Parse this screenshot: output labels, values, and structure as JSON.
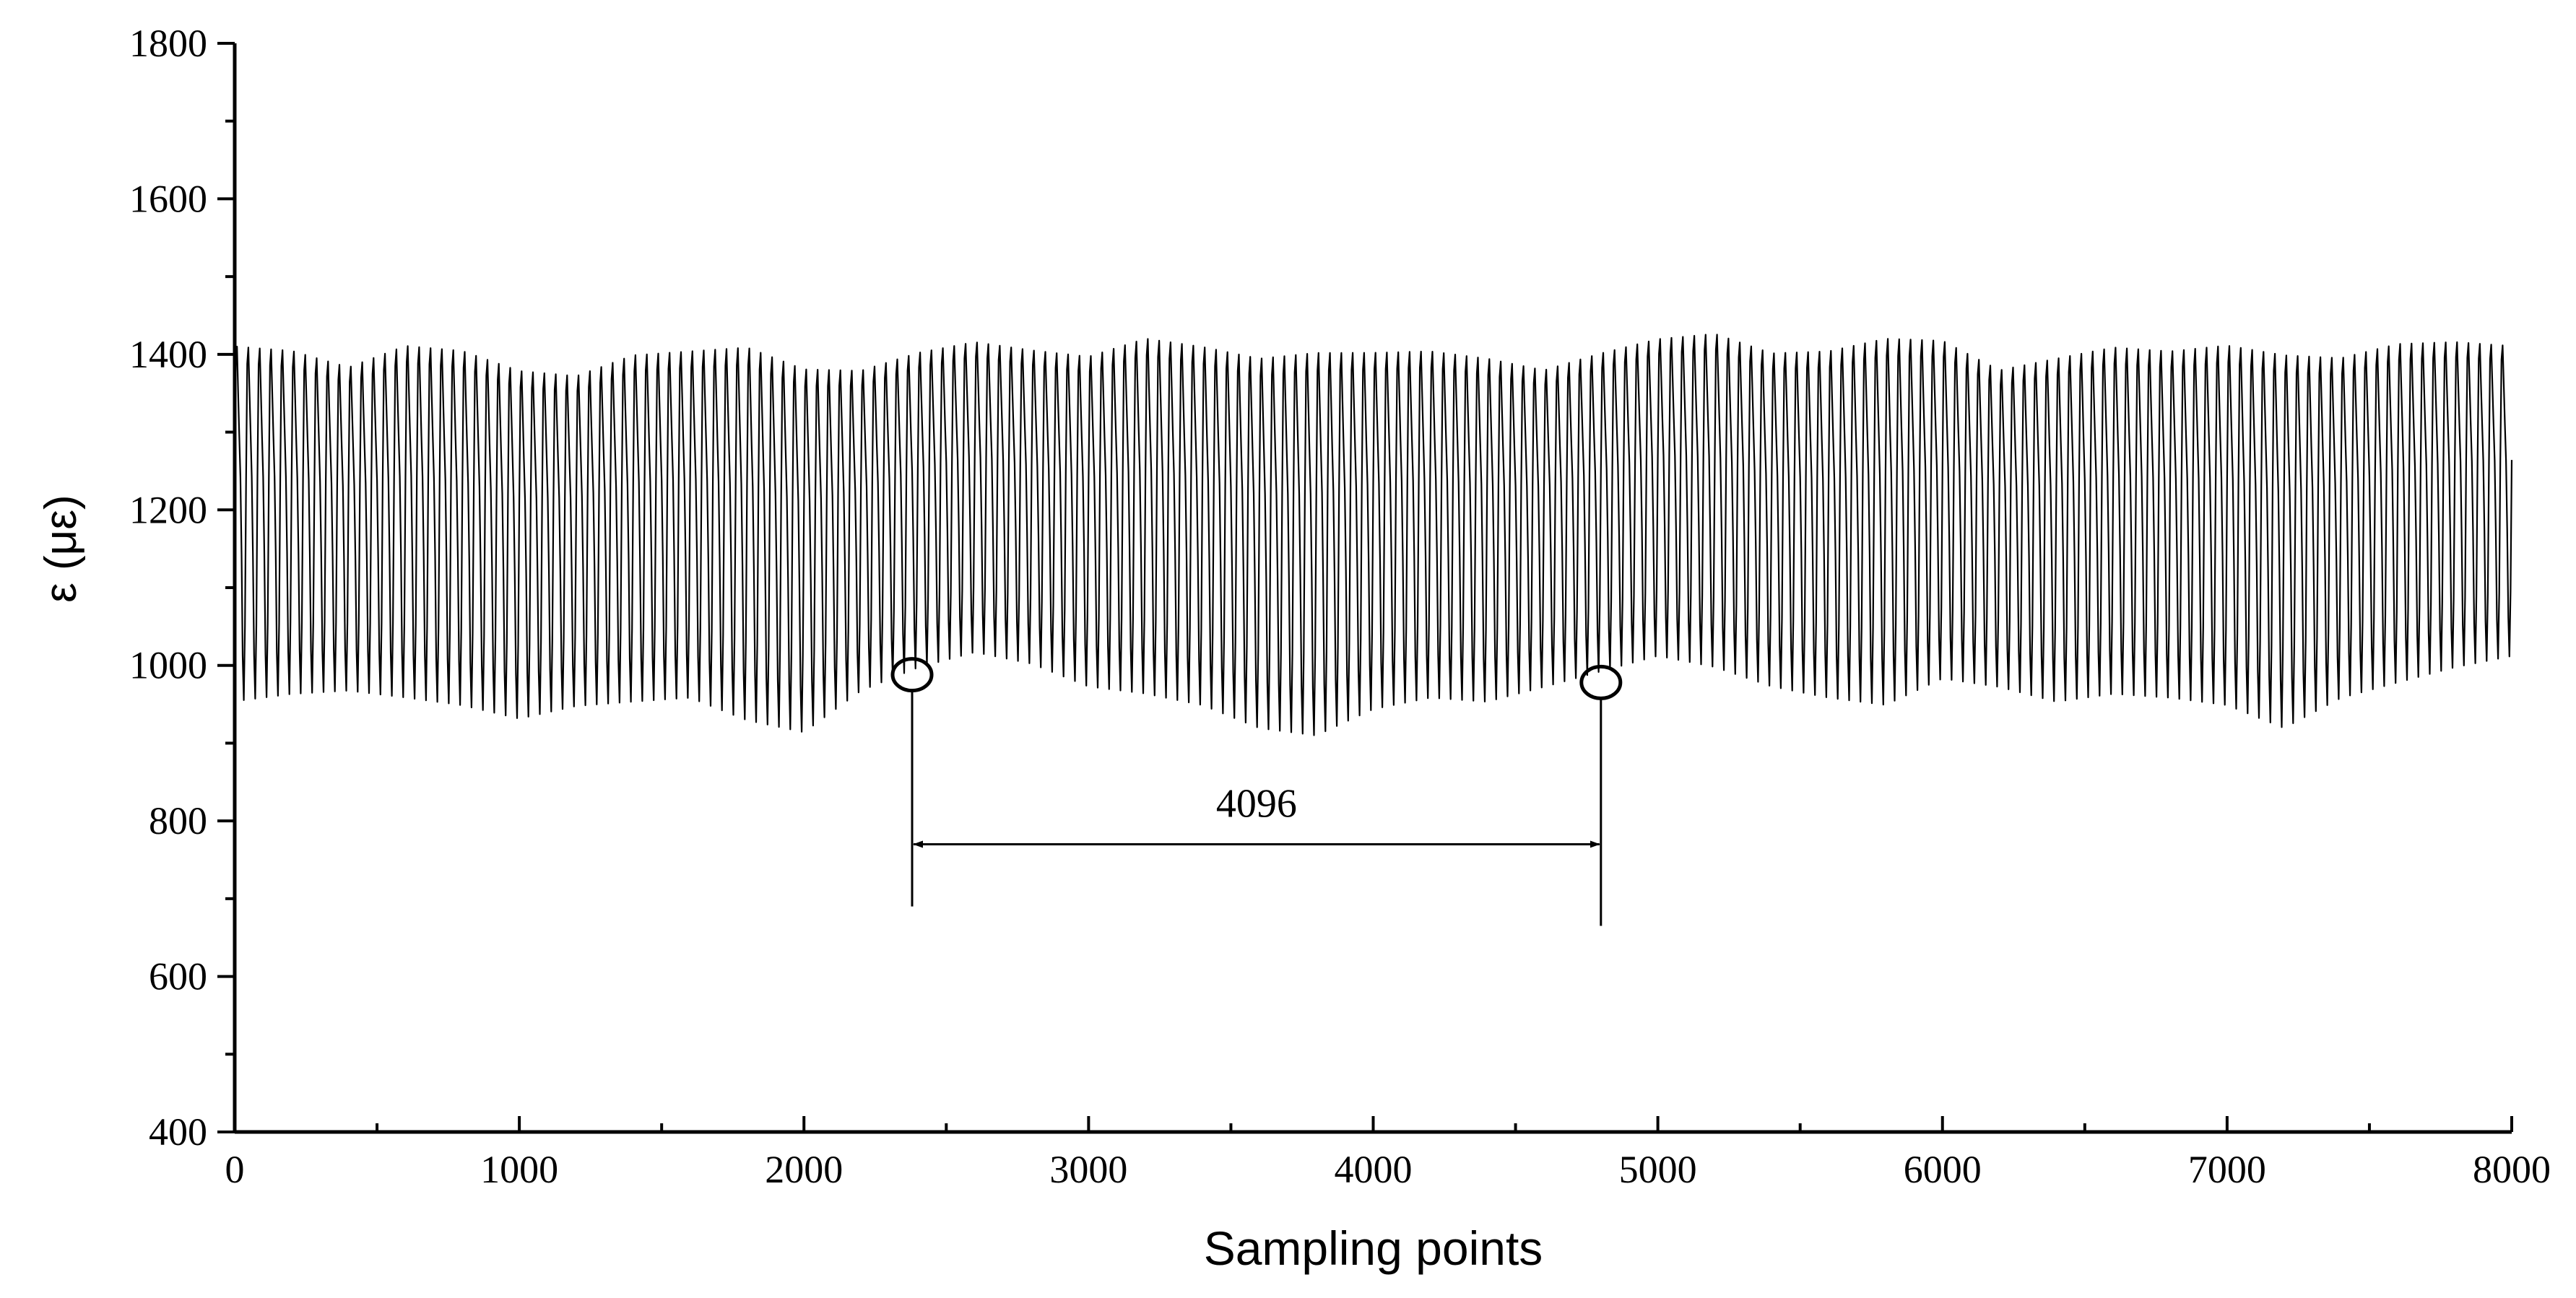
{
  "chart_data": {
    "type": "line",
    "title": "",
    "xlabel": "Sampling points",
    "ylabel": "ε (με)",
    "xlim": [
      0,
      8000
    ],
    "ylim": [
      400,
      1800
    ],
    "xticks": [
      0,
      1000,
      2000,
      3000,
      4000,
      5000,
      6000,
      7000,
      8000
    ],
    "yticks": [
      400,
      600,
      800,
      1000,
      1200,
      1400,
      1600,
      1800
    ],
    "grid": false,
    "legend": "none",
    "line_color": "#000000",
    "series": [
      {
        "name": "",
        "sample_step": 4,
        "cycle_length_points": 40,
        "mean": 1215,
        "amplitude_range": [
          215,
          275
        ],
        "envelope_max": [
          [
            0,
            1478
          ],
          [
            200,
            1470
          ],
          [
            400,
            1445
          ],
          [
            600,
            1478
          ],
          [
            800,
            1472
          ],
          [
            1000,
            1445
          ],
          [
            1200,
            1435
          ],
          [
            1400,
            1465
          ],
          [
            1600,
            1470
          ],
          [
            1800,
            1480
          ],
          [
            2000,
            1450
          ],
          [
            2200,
            1440
          ],
          [
            2400,
            1462
          ],
          [
            2600,
            1475
          ],
          [
            2800,
            1465
          ],
          [
            3000,
            1460
          ],
          [
            3200,
            1488
          ],
          [
            3400,
            1478
          ],
          [
            3600,
            1465
          ],
          [
            3800,
            1475
          ],
          [
            4000,
            1470
          ],
          [
            4200,
            1470
          ],
          [
            4400,
            1460
          ],
          [
            4600,
            1440
          ],
          [
            4800,
            1462
          ],
          [
            5000,
            1480
          ],
          [
            5200,
            1490
          ],
          [
            5400,
            1465
          ],
          [
            5600,
            1470
          ],
          [
            5800,
            1490
          ],
          [
            6000,
            1482
          ],
          [
            6200,
            1440
          ],
          [
            6400,
            1460
          ],
          [
            6600,
            1475
          ],
          [
            6800,
            1470
          ],
          [
            7000,
            1480
          ],
          [
            7200,
            1470
          ],
          [
            7400,
            1460
          ],
          [
            7600,
            1478
          ],
          [
            7800,
            1478
          ],
          [
            8000,
            1470
          ]
        ],
        "envelope_min": [
          [
            0,
            940
          ],
          [
            200,
            950
          ],
          [
            400,
            955
          ],
          [
            600,
            945
          ],
          [
            800,
            935
          ],
          [
            1000,
            918
          ],
          [
            1200,
            935
          ],
          [
            1400,
            940
          ],
          [
            1600,
            945
          ],
          [
            1800,
            915
          ],
          [
            2000,
            900
          ],
          [
            2200,
            955
          ],
          [
            2400,
            985
          ],
          [
            2600,
            1005
          ],
          [
            2800,
            990
          ],
          [
            3000,
            960
          ],
          [
            3200,
            950
          ],
          [
            3400,
            935
          ],
          [
            3600,
            905
          ],
          [
            3800,
            895
          ],
          [
            4000,
            930
          ],
          [
            4200,
            945
          ],
          [
            4400,
            940
          ],
          [
            4600,
            960
          ],
          [
            4800,
            980
          ],
          [
            5000,
            1000
          ],
          [
            5200,
            985
          ],
          [
            5400,
            960
          ],
          [
            5600,
            945
          ],
          [
            5800,
            935
          ],
          [
            6000,
            970
          ],
          [
            6200,
            960
          ],
          [
            6400,
            940
          ],
          [
            6600,
            950
          ],
          [
            6800,
            945
          ],
          [
            7000,
            935
          ],
          [
            7200,
            905
          ],
          [
            7400,
            945
          ],
          [
            7600,
            965
          ],
          [
            7800,
            985
          ],
          [
            8000,
            1000
          ]
        ]
      }
    ],
    "annotations": [
      {
        "type": "circle",
        "x": 2380,
        "y": 988
      },
      {
        "type": "circle",
        "x": 4800,
        "y": 978
      },
      {
        "type": "vline",
        "x": 2380,
        "y_from": 988,
        "y_to": 690
      },
      {
        "type": "vline",
        "x": 4800,
        "y_from": 978,
        "y_to": 665
      },
      {
        "type": "double-arrow",
        "x_from": 2380,
        "x_to": 4800,
        "y": 770,
        "label": "4096"
      }
    ]
  }
}
